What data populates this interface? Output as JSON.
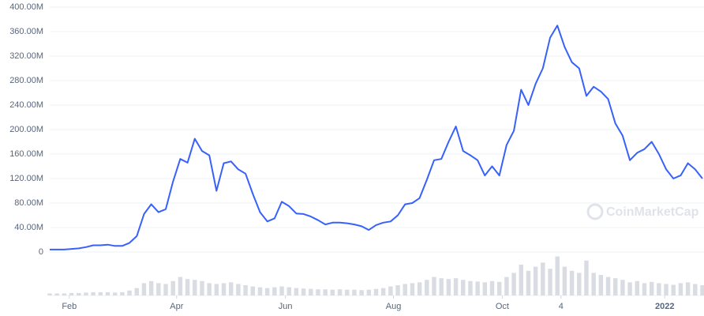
{
  "chart_data": {
    "type": "line",
    "watermark": "CoinMarketCap",
    "series": [
      {
        "color": "#3861fb",
        "values": [
          4,
          4,
          4,
          5,
          6,
          8,
          11,
          11,
          12,
          10,
          10,
          15,
          26,
          62,
          78,
          65,
          70,
          115,
          152,
          146,
          185,
          165,
          158,
          100,
          145,
          148,
          135,
          128,
          95,
          65,
          50,
          55,
          82,
          75,
          63,
          62,
          58,
          52,
          45,
          48,
          48,
          47,
          45,
          42,
          36,
          44,
          48,
          50,
          60,
          78,
          80,
          88,
          118,
          150,
          152,
          180,
          205,
          165,
          158,
          150,
          125,
          140,
          125,
          175,
          198,
          265,
          240,
          275,
          300,
          350,
          370,
          335,
          310,
          300,
          255,
          270,
          262,
          250,
          210,
          190,
          150,
          162,
          168,
          180,
          160,
          135,
          120,
          125,
          145,
          135,
          120
        ]
      }
    ],
    "volume": {
      "color": "#d9dde3",
      "ylim": [
        0,
        100
      ],
      "values": [
        5,
        5,
        5,
        6,
        6,
        7,
        8,
        8,
        8,
        7,
        8,
        12,
        18,
        30,
        35,
        30,
        28,
        35,
        45,
        40,
        38,
        35,
        30,
        28,
        30,
        32,
        28,
        25,
        22,
        20,
        18,
        20,
        22,
        20,
        18,
        17,
        16,
        15,
        15,
        14,
        15,
        14,
        14,
        13,
        14,
        16,
        18,
        22,
        25,
        28,
        30,
        32,
        38,
        45,
        42,
        40,
        42,
        38,
        35,
        34,
        32,
        35,
        33,
        45,
        55,
        75,
        60,
        70,
        80,
        65,
        95,
        70,
        60,
        55,
        85,
        55,
        50,
        45,
        42,
        38,
        32,
        35,
        30,
        33,
        30,
        28,
        26,
        30,
        32,
        28,
        25
      ]
    },
    "xlim": [
      0,
      90
    ],
    "xticks": [
      {
        "value": 2.7,
        "label": "Feb"
      },
      {
        "value": 17.5,
        "label": "Apr"
      },
      {
        "value": 32.5,
        "label": "Jun"
      },
      {
        "value": 47.4,
        "label": "Aug"
      },
      {
        "value": 62.4,
        "label": "Oct"
      },
      {
        "value": 70.5,
        "label": "4"
      },
      {
        "value": 84.8,
        "label": "2022"
      }
    ],
    "ylim": [
      0,
      400
    ],
    "yticks": [
      0,
      {
        "value": 40,
        "label": "40.00M"
      },
      {
        "value": 80,
        "label": "80.00M"
      },
      {
        "value": 120,
        "label": "120.00M"
      },
      {
        "value": 160,
        "label": "160.00M"
      },
      {
        "value": 200,
        "label": "200.00M"
      },
      {
        "value": 240,
        "label": "240.00M"
      },
      {
        "value": 280,
        "label": "280.00M"
      },
      {
        "value": 320,
        "label": "320.00M"
      },
      {
        "value": 360,
        "label": "360.00M"
      },
      {
        "value": 400,
        "label": "400.00M"
      }
    ],
    "grid": true
  }
}
